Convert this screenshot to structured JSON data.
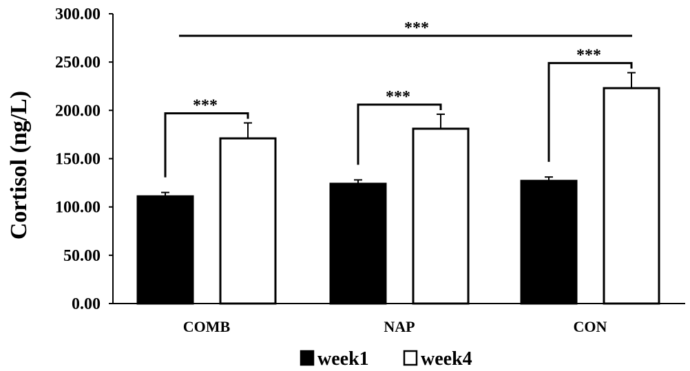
{
  "chart_data": {
    "type": "bar",
    "title": "",
    "xlabel": "",
    "ylabel": "Cortisol (ng/L)",
    "ylim": [
      0,
      300
    ],
    "yticks": [
      "0.00",
      "50.00",
      "100.00",
      "150.00",
      "200.00",
      "250.00",
      "300.00"
    ],
    "categories": [
      "COMB",
      "NAP",
      "CON"
    ],
    "series": [
      {
        "name": "week1",
        "values": [
          111,
          124,
          127
        ],
        "errors": [
          4,
          4,
          4
        ],
        "fill": "#000000"
      },
      {
        "name": "week4",
        "values": [
          171,
          181,
          223
        ],
        "errors": [
          16,
          15,
          16
        ],
        "fill": "#ffffff"
      }
    ],
    "significance": [
      {
        "label": "***",
        "kind": "within",
        "category_index": 0
      },
      {
        "label": "***",
        "kind": "within",
        "category_index": 1
      },
      {
        "label": "***",
        "kind": "within",
        "category_index": 2
      },
      {
        "label": "***",
        "kind": "across",
        "from_category": 0,
        "to_category": 2
      }
    ],
    "grid": false,
    "legend_position": "bottom"
  }
}
